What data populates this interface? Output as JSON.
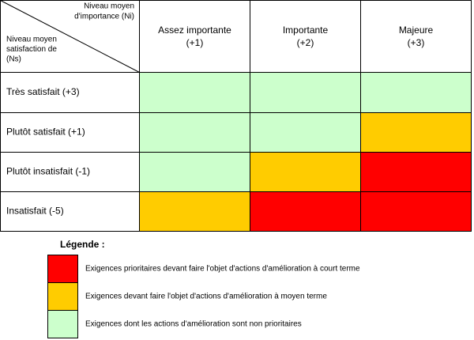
{
  "header": {
    "corner": {
      "column_axis": [
        "Niveau moyen",
        "d'importance (Ni)"
      ],
      "row_axis": [
        "Niveau moyen",
        "satisfaction de",
        "(Ns)"
      ]
    },
    "columns": [
      [
        "Assez importante",
        "(+1)"
      ],
      [
        "Importante",
        "(+2)"
      ],
      [
        "Majeure",
        "(+3)"
      ]
    ]
  },
  "rows": [
    {
      "label": "Très satisfait (+3)",
      "cells": [
        "#ccffcc",
        "#ccffcc",
        "#ccffcc"
      ]
    },
    {
      "label": "Plutôt satisfait (+1)",
      "cells": [
        "#ccffcc",
        "#ccffcc",
        "#ffcc00"
      ]
    },
    {
      "label": "Plutôt insatisfait (-1)",
      "cells": [
        "#ccffcc",
        "#ffcc00",
        "#ff0000"
      ]
    },
    {
      "label": "Insatisfait (-5)",
      "cells": [
        "#ffcc00",
        "#ff0000",
        "#ff0000"
      ]
    }
  ],
  "legend": {
    "title": "Légende :",
    "items": [
      {
        "color": "#ff0000",
        "text": "Exigences prioritaires devant faire l'objet d'actions d'amélioration à court terme"
      },
      {
        "color": "#ffcc00",
        "text": "Exigences devant faire l'objet d'actions d'amélioration à moyen terme"
      },
      {
        "color": "#ccffcc",
        "text": "Exigences dont les actions d'amélioration sont non prioritaires"
      }
    ]
  }
}
